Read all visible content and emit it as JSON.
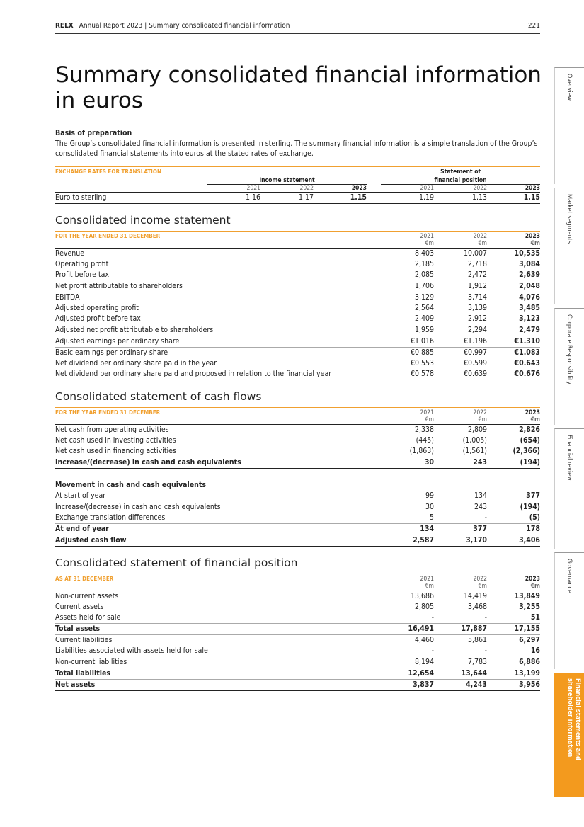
{
  "header": {
    "brand": "RELX",
    "title": "Annual Report 2023 | Summary consolidated financial information",
    "page": "221"
  },
  "title_line1": "Summary consolidated financial information",
  "title_line2": "in euros",
  "basis": {
    "heading": "Basis of preparation",
    "text": "The Group’s consolidated financial information is presented in sterling. The summary financial information is a simple translation of the Group’s consolidated financial statements into euros at the stated rates of exchange."
  },
  "exchange": {
    "caption": "EXCHANGE RATES FOR TRANSLATION",
    "group1": "Income statement",
    "group2_line1": "Statement of",
    "group2_line2": "financial position",
    "years": [
      "2021",
      "2022",
      "2023",
      "2021",
      "2022",
      "2023"
    ],
    "label": "Euro to sterling",
    "values": [
      "1.16",
      "1.17",
      "1.15",
      "1.19",
      "1.13",
      "1.15"
    ]
  },
  "income": {
    "title": "Consolidated income statement",
    "caption": "FOR THE YEAR ENDED 31 DECEMBER",
    "years": [
      "2021",
      "2022",
      "2023"
    ],
    "unit": "€m",
    "rows": [
      {
        "label": "Revenue",
        "values": [
          "8,403",
          "10,007",
          "10,535"
        ]
      },
      {
        "label": "Operating profit",
        "values": [
          "2,185",
          "2,718",
          "3,084"
        ]
      },
      {
        "label": "Profit before tax",
        "values": [
          "2,085",
          "2,472",
          "2,639"
        ]
      },
      {
        "label": "Net profit attributable to shareholders",
        "values": [
          "1,706",
          "1,912",
          "2,048"
        ]
      },
      {
        "label": "EBITDA",
        "values": [
          "3,129",
          "3,714",
          "4,076"
        ],
        "line": "lt"
      },
      {
        "label": "Adjusted operating profit",
        "values": [
          "2,564",
          "3,139",
          "3,485"
        ]
      },
      {
        "label": "Adjusted profit before tax",
        "values": [
          "2,409",
          "2,912",
          "3,123"
        ]
      },
      {
        "label": "Adjusted net profit attributable to shareholders",
        "values": [
          "1,959",
          "2,294",
          "2,479"
        ]
      },
      {
        "label": "Adjusted earnings per ordinary share",
        "values": [
          "€1.016",
          "€1.196",
          "€1.310"
        ],
        "line": "dk"
      },
      {
        "label": "Basic earnings per ordinary share",
        "values": [
          "€0.885",
          "€0.997",
          "€1.083"
        ],
        "line": "lt"
      },
      {
        "label": "Net dividend per ordinary share paid in the year",
        "values": [
          "€0.553",
          "€0.599",
          "€0.643"
        ]
      },
      {
        "label": "Net dividend per ordinary share paid and proposed in relation to the financial year",
        "values": [
          "€0.578",
          "€0.639",
          "€0.676"
        ],
        "last": true
      }
    ]
  },
  "cash": {
    "title": "Consolidated statement of cash flows",
    "caption": "FOR THE YEAR ENDED 31 DECEMBER",
    "years": [
      "2021",
      "2022",
      "2023"
    ],
    "unit": "€m",
    "rows": [
      {
        "label": "Net cash from operating activities",
        "values": [
          "2,338",
          "2,809",
          "2,826"
        ]
      },
      {
        "label": "Net cash used in investing activities",
        "values": [
          "(445)",
          "(1,005)",
          "(654)"
        ]
      },
      {
        "label": "Net cash used in financing activities",
        "values": [
          "(1,863)",
          "(1,561)",
          "(2,366)"
        ]
      },
      {
        "label": "Increase/(decrease) in cash and cash equivalents",
        "values": [
          "30",
          "243",
          "(194)"
        ],
        "bold": true,
        "line": "lt",
        "last": true
      },
      {
        "gap": true
      },
      {
        "label": "Movement in cash and cash equivalents",
        "sub": true
      },
      {
        "label": "At start of year",
        "values": [
          "99",
          "134",
          "377"
        ]
      },
      {
        "label": "Increase/(decrease) in cash and cash equivalents",
        "values": [
          "30",
          "243",
          "(194)"
        ]
      },
      {
        "label": "Exchange translation differences",
        "values": [
          "5",
          "-",
          "(5)"
        ]
      },
      {
        "label": "At end of year",
        "values": [
          "134",
          "377",
          "178"
        ],
        "bold": true,
        "line": "lt"
      },
      {
        "label": "Adjusted cash flow",
        "values": [
          "2,587",
          "3,170",
          "3,406"
        ],
        "bold": true,
        "line": "lt",
        "last": true
      }
    ]
  },
  "position": {
    "title": "Consolidated statement of financial position",
    "caption": "AS AT 31 DECEMBER",
    "years": [
      "2021",
      "2022",
      "2023"
    ],
    "unit": "€m",
    "rows": [
      {
        "label": "Non-current assets",
        "values": [
          "13,686",
          "14,419",
          "13,849"
        ]
      },
      {
        "label": "Current assets",
        "values": [
          "2,805",
          "3,468",
          "3,255"
        ]
      },
      {
        "label": "Assets held for sale",
        "values": [
          "-",
          "-",
          "51"
        ]
      },
      {
        "label": "Total assets",
        "values": [
          "16,491",
          "17,887",
          "17,155"
        ],
        "bold": true,
        "line": "lt"
      },
      {
        "label": "Current liabilities",
        "values": [
          "4,460",
          "5,861",
          "6,297"
        ],
        "line": "lt"
      },
      {
        "label": "Liabilities associated with assets held for sale",
        "values": [
          "-",
          "-",
          "16"
        ]
      },
      {
        "label": "Non-current liabilities",
        "values": [
          "8,194",
          "7,783",
          "6,886"
        ]
      },
      {
        "label": "Total liabilities",
        "values": [
          "12,654",
          "13,644",
          "13,199"
        ],
        "bold": true,
        "line": "dk"
      },
      {
        "label": "Net assets",
        "values": [
          "3,837",
          "4,243",
          "3,956"
        ],
        "bold": true,
        "line": "lt",
        "last": true
      }
    ]
  },
  "tabs": [
    {
      "label": "Overview"
    },
    {
      "label": "Market segments"
    },
    {
      "label": "Corporate Responsibility"
    },
    {
      "label": "Financial review"
    },
    {
      "label": "Governance"
    },
    {
      "label": "Financial statements and shareholder information",
      "active": true
    }
  ],
  "colors": {
    "accent": "#f39a1e",
    "caption": "#f0a030"
  }
}
